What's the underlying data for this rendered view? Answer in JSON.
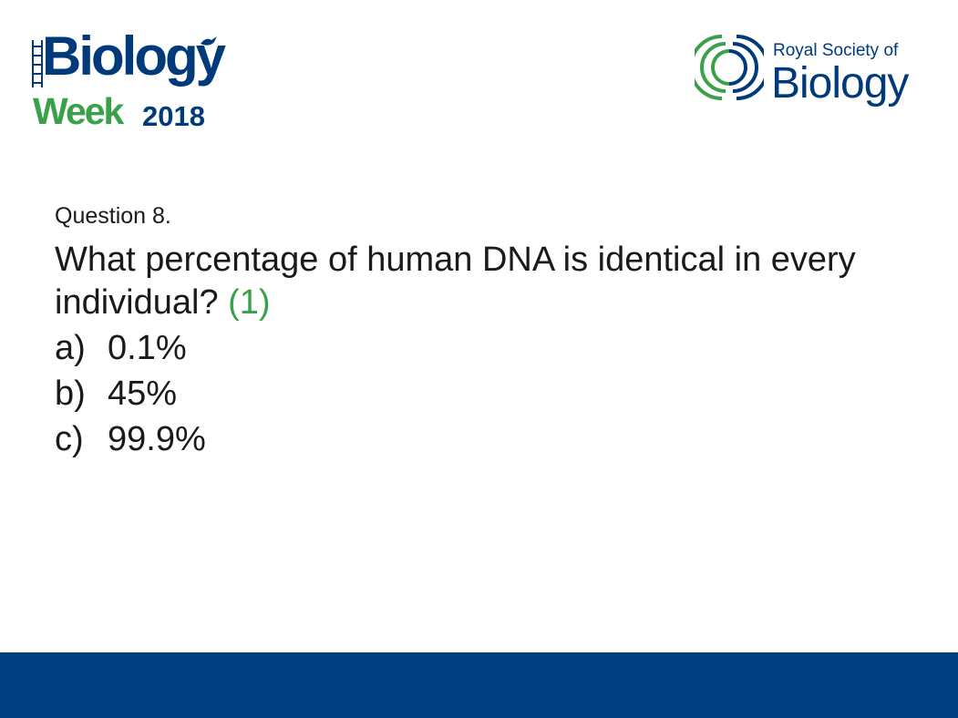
{
  "logos": {
    "biology_week": {
      "title": "Biology",
      "week": "Week",
      "year": "2018",
      "green": "#3aa04a",
      "blue": "#003a7a"
    },
    "rsb": {
      "line1": "Royal Society of",
      "line2": "Biology",
      "blue": "#003a7a",
      "green": "#3aa04a"
    }
  },
  "question": {
    "number_label": "Question 8.",
    "text": "What percentage of human DNA is identical in every individual?",
    "marks": "(1)",
    "options": [
      {
        "letter": "a)",
        "text": "0.1%"
      },
      {
        "letter": "b)",
        "text": "45%"
      },
      {
        "letter": "c)",
        "text": "99.9%"
      }
    ]
  },
  "colors": {
    "footer_band": "#003f7f",
    "marks_green": "#3aa04a"
  }
}
